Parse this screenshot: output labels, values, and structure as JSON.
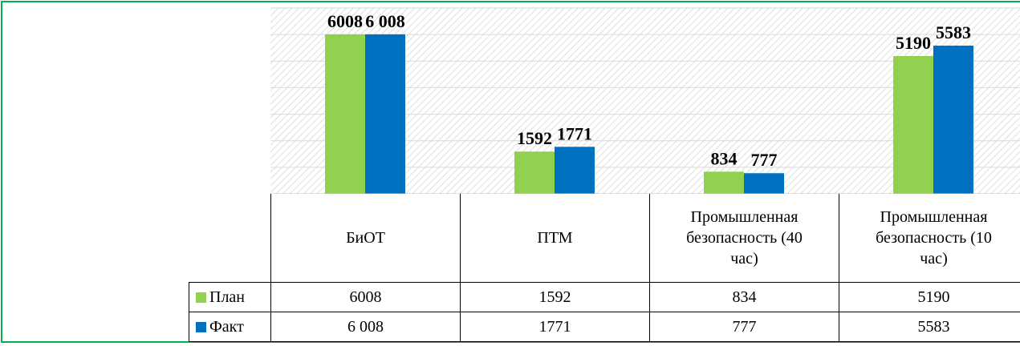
{
  "chart_data": {
    "type": "bar",
    "categories": [
      "БиОТ",
      "ПТМ",
      "Промышленная безопасность (40 час)",
      "Промышленная безопасность (10 час)"
    ],
    "series": [
      {
        "name": "План",
        "color": "#92d050",
        "values": [
          6008,
          1592,
          834,
          5190
        ]
      },
      {
        "name": "Факт",
        "color": "#0070c0",
        "values": [
          6008,
          1771,
          777,
          5583
        ],
        "value_labels": [
          "6 008",
          "1771",
          "777",
          "5583"
        ]
      }
    ],
    "ylim": [
      0,
      7000
    ],
    "yticks": [
      0,
      1000,
      2000,
      3000,
      4000,
      5000,
      6000,
      7000
    ],
    "grid": true,
    "data_table": true
  }
}
